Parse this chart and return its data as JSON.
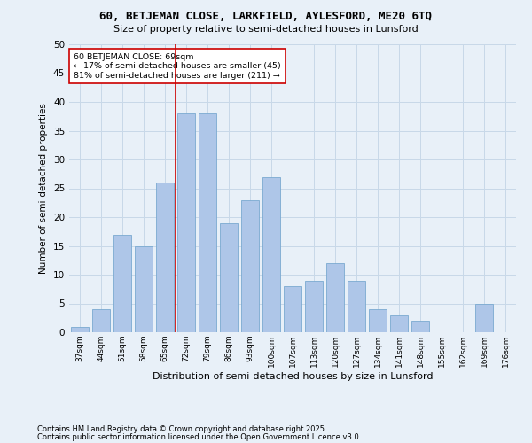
{
  "title1": "60, BETJEMAN CLOSE, LARKFIELD, AYLESFORD, ME20 6TQ",
  "title2": "Size of property relative to semi-detached houses in Lunsford",
  "xlabel": "Distribution of semi-detached houses by size in Lunsford",
  "ylabel": "Number of semi-detached properties",
  "footnote1": "Contains HM Land Registry data © Crown copyright and database right 2025.",
  "footnote2": "Contains public sector information licensed under the Open Government Licence v3.0.",
  "bar_labels": [
    "37sqm",
    "44sqm",
    "51sqm",
    "58sqm",
    "65sqm",
    "72sqm",
    "79sqm",
    "86sqm",
    "93sqm",
    "100sqm",
    "107sqm",
    "113sqm",
    "120sqm",
    "127sqm",
    "134sqm",
    "141sqm",
    "148sqm",
    "155sqm",
    "162sqm",
    "169sqm",
    "176sqm"
  ],
  "bar_values": [
    1,
    4,
    17,
    15,
    26,
    38,
    38,
    19,
    23,
    27,
    8,
    9,
    12,
    9,
    4,
    3,
    2,
    0,
    0,
    5,
    0
  ],
  "bar_color": "#aec6e8",
  "bar_edge_color": "#7aaad0",
  "grid_color": "#c8d8e8",
  "background_color": "#e8f0f8",
  "vline_x": 4.5,
  "annotation_text": "60 BETJEMAN CLOSE: 69sqm\n← 17% of semi-detached houses are smaller (45)\n81% of semi-detached houses are larger (211) →",
  "annotation_box_color": "#ffffff",
  "annotation_box_edge": "#cc0000",
  "vline_color": "#cc0000",
  "ylim": [
    0,
    50
  ],
  "yticks": [
    0,
    5,
    10,
    15,
    20,
    25,
    30,
    35,
    40,
    45,
    50
  ]
}
